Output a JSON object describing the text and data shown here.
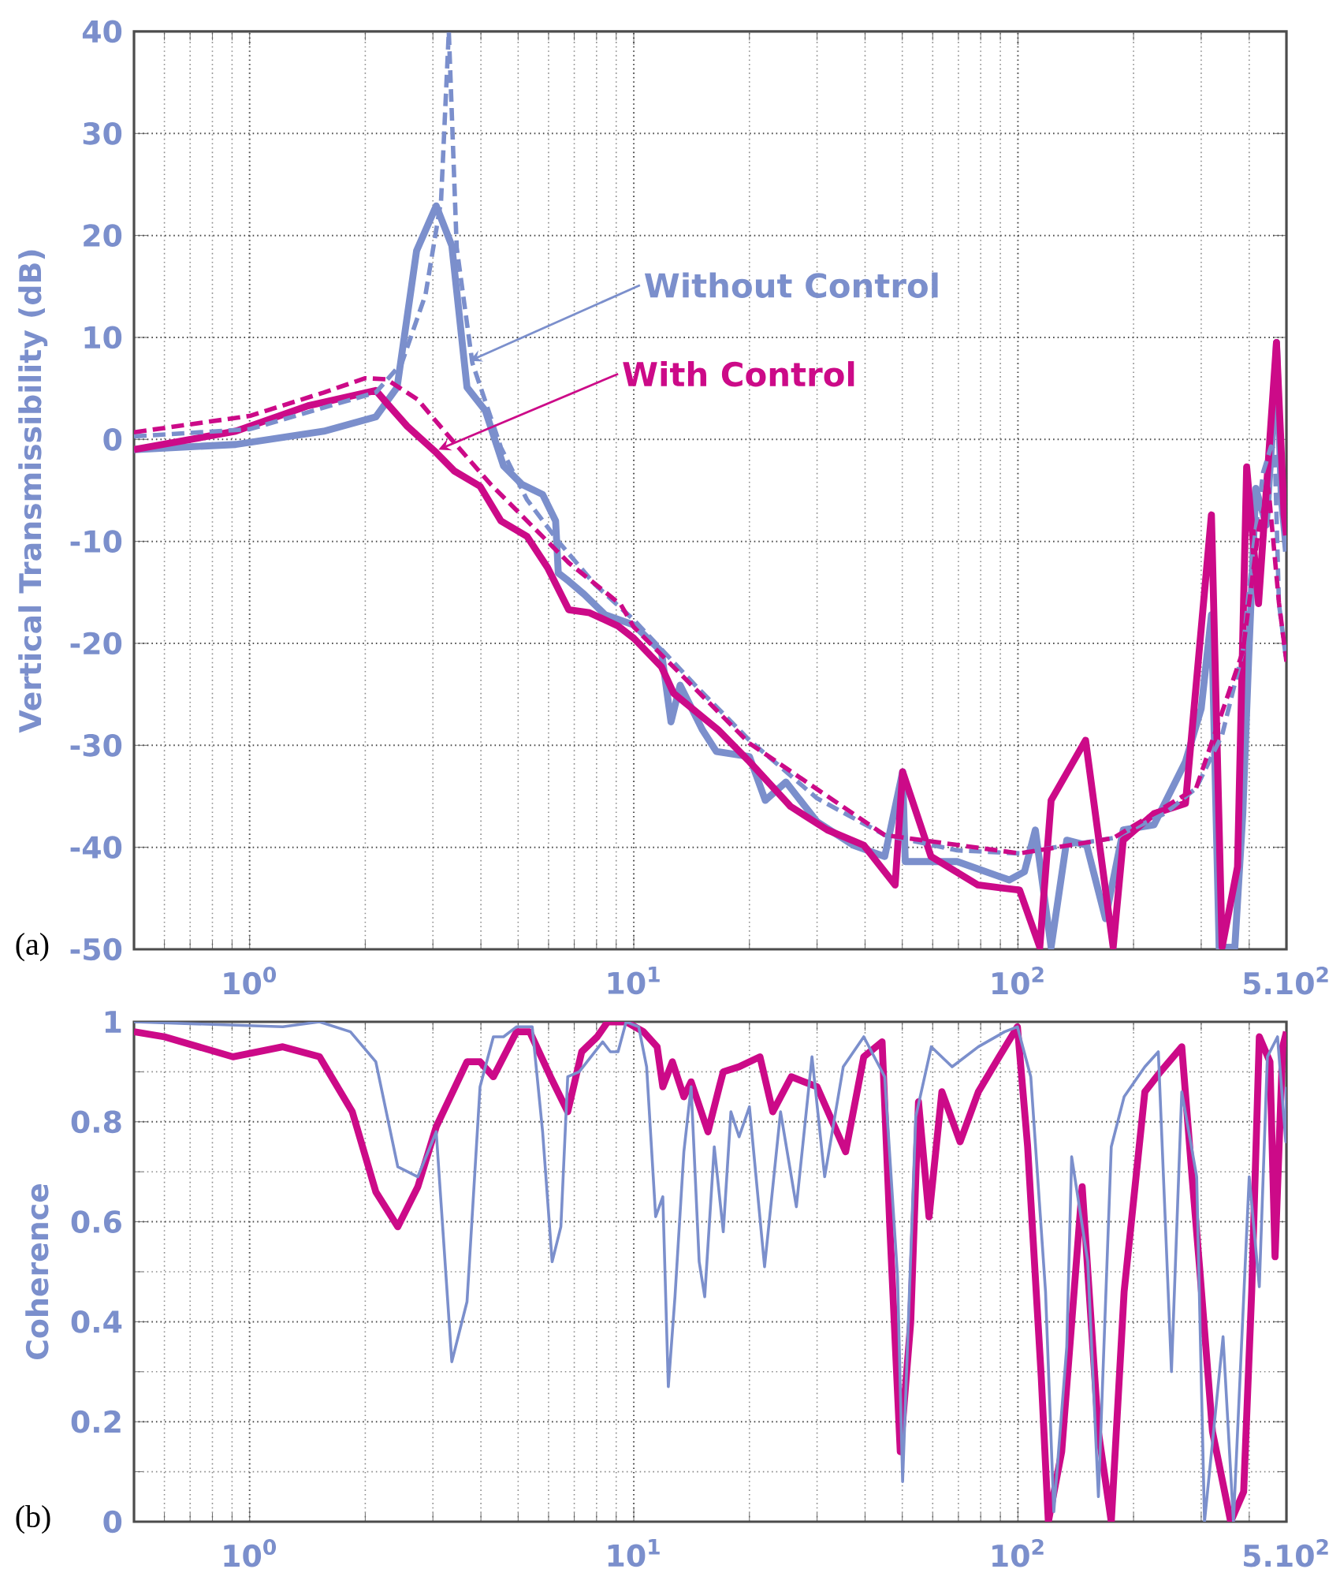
{
  "chart_data": [
    {
      "type": "line",
      "ylabel": "Vertical Transmissibility (dB)",
      "log": "x",
      "grid": true,
      "xlim": [
        0.5,
        500
      ],
      "ylim": [
        -50,
        40
      ],
      "xticks": [
        {
          "value": 1,
          "label": "10$^{0}$"
        },
        {
          "value": 10,
          "label": "10$^{1}$"
        },
        {
          "value": 100,
          "label": "10$^{2}$"
        },
        {
          "value": 500,
          "label": "5.10$^{2}$"
        }
      ],
      "yticks": [
        -50,
        -40,
        -30,
        -20,
        -10,
        0,
        10,
        20,
        30,
        40
      ],
      "annotations": [
        {
          "text": "Without Control",
          "x": 3.74,
          "y": 7.7
        },
        {
          "text": "With Control",
          "x": 3.1,
          "y": -1.0
        },
        "(a)"
      ],
      "series": [
        {
          "color": "#7b8fcc",
          "line_style": "solid",
          "x": [
            0.5,
            0.92,
            1.56,
            2.13,
            2.42,
            2.72,
            3.06,
            3.36,
            3.68,
            4.11,
            4.58,
            5.11,
            5.79,
            6.26,
            6.36,
            6.77,
            7.43,
            8.42,
            10,
            11.8,
            12.5,
            13.2,
            15.1,
            16.4,
            20,
            22,
            24.9,
            30,
            37.3,
            45,
            50.1,
            50.9,
            69.5,
            94.9,
            104,
            111,
            122,
            134,
            151,
            169,
            188,
            226,
            273,
            300,
            319,
            334,
            367,
            385,
            399,
            416,
            443,
            464,
            471,
            485,
            500
          ],
          "values": [
            -1.0,
            -0.5,
            0.8,
            2.2,
            5.1,
            18.5,
            22.9,
            19.0,
            5.1,
            2.8,
            -2.6,
            -4.4,
            -5.4,
            -8.0,
            -13.1,
            -13.9,
            -15.2,
            -17.2,
            -18.2,
            -20.8,
            -27.7,
            -24.1,
            -28.5,
            -30.6,
            -31.1,
            -35.4,
            -33.6,
            -37.5,
            -39.8,
            -40.9,
            -32.6,
            -41.4,
            -41.4,
            -43.2,
            -42.4,
            -38.3,
            -49.8,
            -39.3,
            -39.8,
            -47.0,
            -38.3,
            -37.8,
            -31.6,
            -26.4,
            -17.2,
            -49.8,
            -49.8,
            -36.7,
            -21.3,
            -4.8,
            -8.4,
            2.9,
            9.5,
            -5.8,
            -11.0
          ]
        },
        {
          "color": "#cc0a88",
          "line_style": "solid",
          "x": [
            0.5,
            0.92,
            1.42,
            2.13,
            2.27,
            2.57,
            3.06,
            3.41,
            3.98,
            4.51,
            5.27,
            5.97,
            6.77,
            7.67,
            9.1,
            10,
            11.8,
            12.7,
            16.6,
            20,
            25.6,
            31.9,
            39.7,
            47.9,
            50.1,
            59.4,
            78.7,
            101,
            114,
            122,
            150,
            177,
            188,
            226,
            273,
            319,
            340,
            373,
            394,
            423,
            471,
            493,
            500
          ],
          "values": [
            -1.0,
            0.8,
            3.3,
            4.8,
            3.6,
            1.3,
            -1.3,
            -3.1,
            -4.6,
            -8.0,
            -9.5,
            -12.6,
            -16.7,
            -17.0,
            -18.3,
            -19.5,
            -22.3,
            -24.9,
            -28.5,
            -31.6,
            -36.0,
            -38.3,
            -39.8,
            -43.7,
            -32.6,
            -40.9,
            -43.7,
            -44.2,
            -49.8,
            -35.4,
            -29.5,
            -49.8,
            -39.3,
            -36.7,
            -35.7,
            -7.4,
            -49.8,
            -41.9,
            -2.7,
            -16.1,
            9.5,
            -7.4,
            -9.4
          ]
        },
        {
          "color": "#7b8fcc",
          "line_style": "dashed",
          "x": [
            0.5,
            1.0,
            2.13,
            2.49,
            2.87,
            3.15,
            3.3,
            3.46,
            3.8,
            4.51,
            5.27,
            6.36,
            7.91,
            10,
            14.7,
            20,
            30,
            45,
            69.5,
            101,
            129,
            177,
            241,
            291,
            340,
            385,
            409,
            435,
            456,
            466,
            478,
            500
          ],
          "values": [
            0.3,
            1.0,
            4.6,
            7.5,
            14.2,
            23.4,
            40,
            18.8,
            7.5,
            -0.8,
            -5.9,
            -10.0,
            -14.2,
            -17.7,
            -24.4,
            -29.5,
            -35.2,
            -38.8,
            -40.3,
            -40.6,
            -39.9,
            -39.1,
            -36.7,
            -34.2,
            -29.0,
            -20.8,
            -11.0,
            -3.2,
            -0.7,
            -1,
            -16.1,
            -21.8
          ]
        },
        {
          "color": "#cc0a88",
          "line_style": "dashed",
          "x": [
            0.5,
            1.0,
            1.56,
            2.0,
            2.27,
            2.74,
            3.3,
            4.24,
            5.44,
            6.77,
            9.25,
            10,
            20,
            45,
            101,
            177,
            291,
            385,
            423,
            449,
            478,
            500
          ],
          "values": [
            0.7,
            2.3,
            4.6,
            6.0,
            5.9,
            3.9,
            0.3,
            -4.4,
            -8.5,
            -12.1,
            -16.2,
            -18.4,
            -29.8,
            -38.8,
            -40.6,
            -39.1,
            -34.2,
            -20.8,
            -8.9,
            -4.8,
            -16,
            -21.8
          ]
        }
      ]
    },
    {
      "type": "line",
      "ylabel": "Coherence",
      "log": "x",
      "grid": true,
      "xlim": [
        0.5,
        500
      ],
      "ylim": [
        0,
        1
      ],
      "xticks": [
        {
          "value": 1,
          "label": "10$^{0}$"
        },
        {
          "value": 10,
          "label": "10$^{1}$"
        },
        {
          "value": 100,
          "label": "10$^{2}$"
        },
        {
          "value": 500,
          "label": "5.10$^{2}$"
        }
      ],
      "yticks": [
        0,
        0.2,
        0.4,
        0.6,
        0.8,
        1
      ],
      "annotations": [
        "(b)"
      ],
      "series": [
        {
          "color": "#cc0a88",
          "line_style": "solid",
          "x": [
            0.5,
            0.6,
            0.905,
            1.22,
            1.52,
            1.85,
            2.13,
            2.43,
            2.74,
            3.06,
            3.68,
            3.98,
            4.31,
            4.95,
            5.36,
            6.07,
            6.73,
            7.32,
            8.03,
            8.55,
            9.55,
            10.6,
            11.5,
            11.9,
            12.6,
            13.5,
            14.1,
            15.6,
            16.7,
            17.1,
            18.8,
            21.3,
            23.0,
            25.7,
            30,
            35.6,
            39.7,
            44.3,
            46.4,
            49.4,
            52.6,
            55.1,
            58.7,
            63.4,
            70.7,
            78.9,
            89.4,
            99.7,
            106,
            115,
            120,
            130,
            147,
            162,
            175,
            189,
            214,
            235,
            267,
            284,
            297,
            321,
            358,
            387,
            406,
            425,
            453,
            467,
            489,
            500
          ],
          "values": [
            0.98,
            0.97,
            0.93,
            0.95,
            0.93,
            0.82,
            0.66,
            0.59,
            0.67,
            0.79,
            0.92,
            0.92,
            0.89,
            0.98,
            0.98,
            0.89,
            0.82,
            0.94,
            0.97,
            1.0,
            1.0,
            0.98,
            0.95,
            0.87,
            0.92,
            0.85,
            0.88,
            0.78,
            0.87,
            0.9,
            0.91,
            0.93,
            0.82,
            0.89,
            0.87,
            0.74,
            0.93,
            0.96,
            0.59,
            0.14,
            0.4,
            0.84,
            0.61,
            0.86,
            0.76,
            0.86,
            0.93,
            0.99,
            0.75,
            0.29,
            0.0,
            0.14,
            0.67,
            0.18,
            0.0,
            0.46,
            0.86,
            0.9,
            0.95,
            0.69,
            0.51,
            0.18,
            0.0,
            0.06,
            0.46,
            0.97,
            0.92,
            0.53,
            0.95,
            0.98
          ]
        },
        {
          "color": "#7b8fcc",
          "line_style": "solid",
          "x": [
            0.5,
            1.22,
            1.52,
            1.83,
            2.13,
            2.43,
            2.74,
            3.06,
            3.36,
            3.68,
            3.98,
            4.31,
            4.58,
            4.95,
            5.44,
            5.79,
            6.13,
            6.46,
            6.73,
            7.21,
            8.3,
            8.69,
            9.1,
            9.55,
            10.3,
            10.8,
            11.4,
            11.9,
            12.3,
            12.8,
            13.5,
            14.1,
            14.8,
            15.3,
            16.2,
            17.1,
            17.9,
            18.8,
            20,
            21.9,
            24.1,
            26.5,
            29.1,
            31.4,
            35.1,
            39.7,
            45,
            48.6,
            50.1,
            54.2,
            59.5,
            67.4,
            78.9,
            92.3,
            99.7,
            108,
            118,
            124,
            134,
            138,
            152,
            162,
            175,
            189,
            214,
            232,
            251,
            267,
            292,
            306,
            342,
            364,
            400,
            425,
            446,
            474,
            498,
            500
          ],
          "values": [
            1.0,
            0.99,
            1.0,
            0.98,
            0.92,
            0.71,
            0.69,
            0.78,
            0.32,
            0.44,
            0.87,
            0.97,
            0.97,
            0.99,
            0.99,
            0.78,
            0.52,
            0.59,
            0.89,
            0.9,
            0.96,
            0.94,
            0.94,
            1.0,
            0.99,
            0.91,
            0.61,
            0.65,
            0.27,
            0.45,
            0.74,
            0.87,
            0.52,
            0.45,
            0.75,
            0.58,
            0.82,
            0.77,
            0.83,
            0.51,
            0.82,
            0.63,
            0.93,
            0.69,
            0.91,
            0.97,
            0.89,
            0.49,
            0.08,
            0.81,
            0.95,
            0.91,
            0.95,
            0.98,
            0.99,
            0.89,
            0.46,
            0.02,
            0.35,
            0.73,
            0.52,
            0.05,
            0.75,
            0.85,
            0.91,
            0.94,
            0.3,
            0.86,
            0.69,
            0.0,
            0.37,
            0.0,
            0.69,
            0.47,
            0.93,
            0.97,
            0.76,
            0.87
          ]
        }
      ]
    }
  ]
}
